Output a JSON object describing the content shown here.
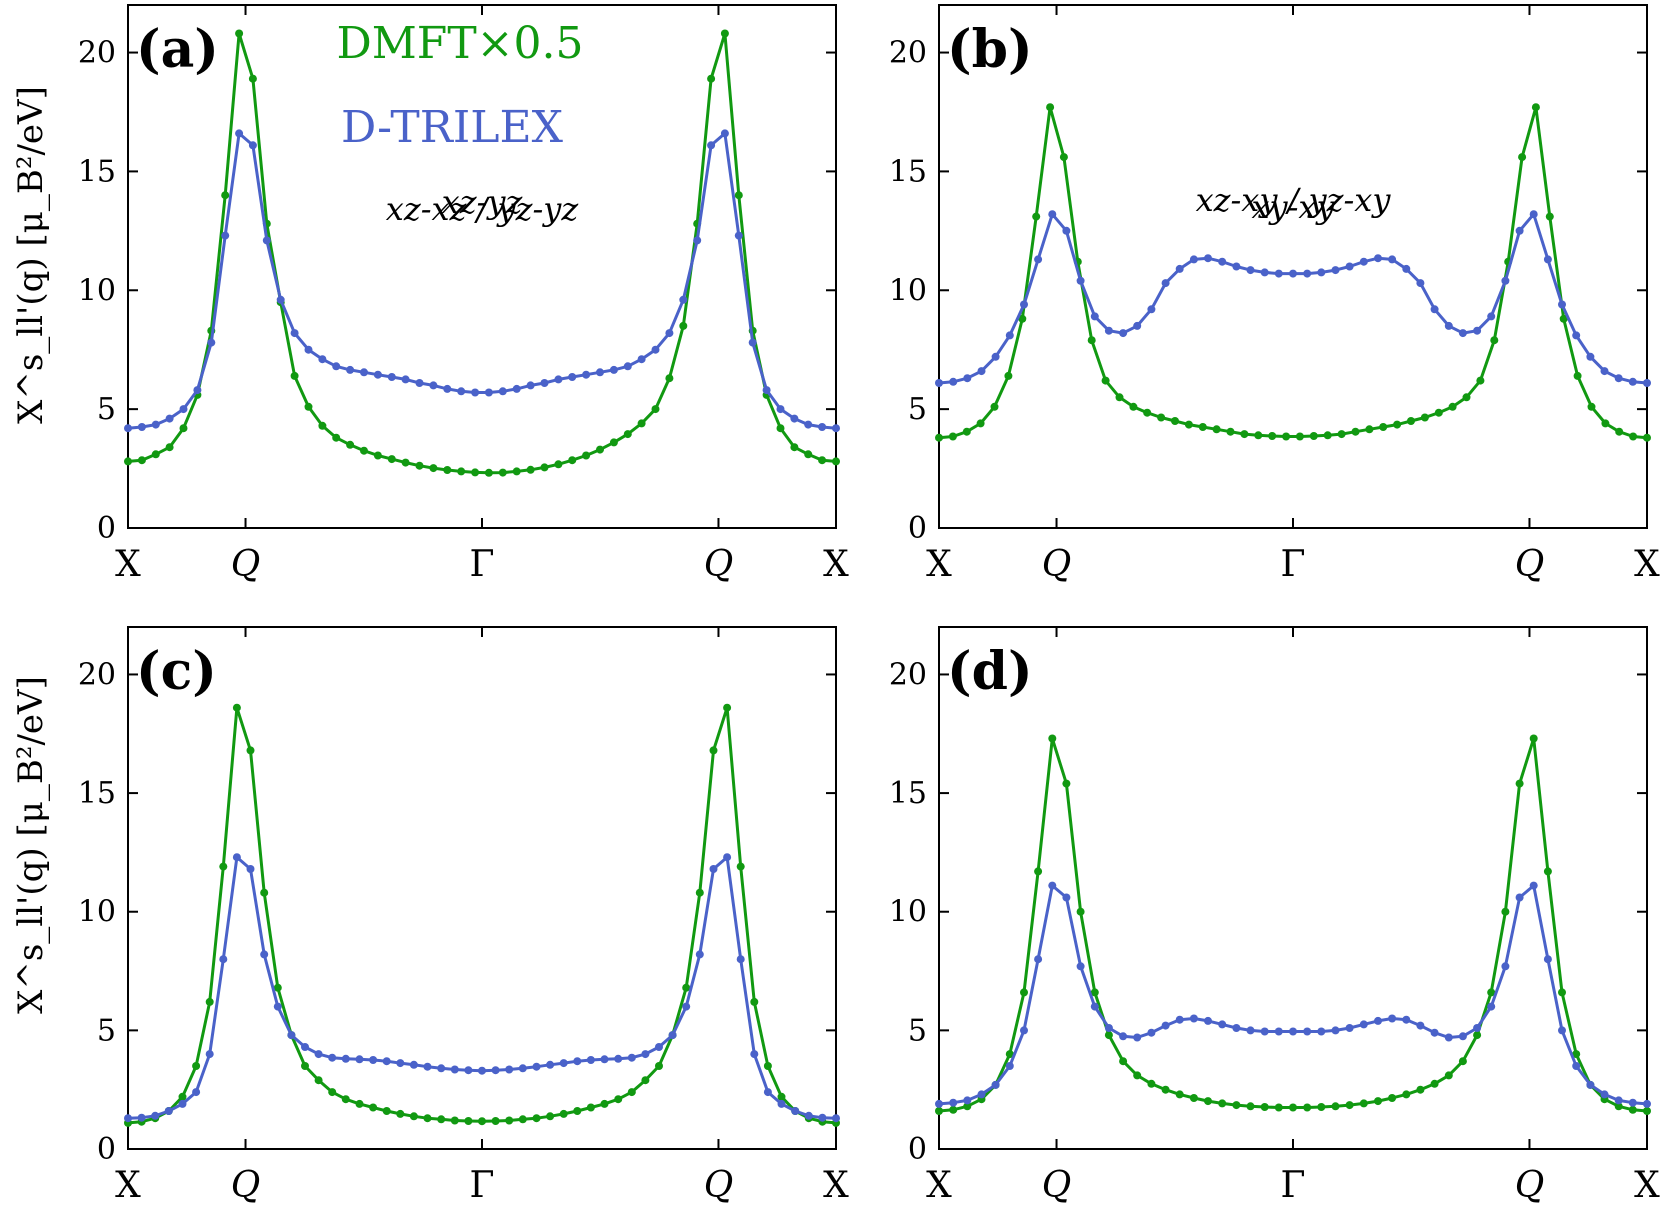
{
  "figure": {
    "ylabel": "X^s_ll'(q) [μ_B²/eV]",
    "legend": [
      {
        "label": "DMFT×0.5",
        "color": "#119911"
      },
      {
        "label": "D-TRILEX",
        "color": "#4a62c9"
      }
    ]
  },
  "chart_data": [
    {
      "type": "line",
      "panel_label": "(a)",
      "orbital_label": "xz-xz / yz-yz",
      "x_ticks": [
        "X",
        "Q",
        "Γ",
        "Q",
        "X"
      ],
      "y_ticks": [
        "0",
        "5",
        "10",
        "15",
        "20"
      ],
      "ylim": [
        0,
        22
      ],
      "series": [
        {
          "name": "DMFT×0.5",
          "color": "#119911",
          "key": "dmft",
          "values": [
            2.8,
            2.85,
            3.1,
            3.4,
            4.2,
            5.6,
            8.3,
            14.0,
            20.8,
            18.9,
            12.8,
            9.5,
            6.4,
            5.1,
            4.3,
            3.8,
            3.5,
            3.25,
            3.05,
            2.9,
            2.75,
            2.62,
            2.52,
            2.44,
            2.38,
            2.34,
            2.32,
            2.33,
            2.38,
            2.45,
            2.55,
            2.68,
            2.85,
            3.05,
            3.3,
            3.6,
            3.95,
            4.4,
            5.0,
            6.3,
            8.5,
            12.8,
            18.9,
            20.8,
            14.0,
            8.3,
            5.6,
            4.2,
            3.4,
            3.1,
            2.85,
            2.8
          ]
        },
        {
          "name": "D-TRILEX",
          "color": "#4a62c9",
          "key": "dtrilex",
          "values": [
            4.2,
            4.25,
            4.35,
            4.6,
            5.0,
            5.8,
            7.8,
            12.3,
            16.6,
            16.1,
            12.1,
            9.6,
            8.2,
            7.5,
            7.1,
            6.8,
            6.65,
            6.55,
            6.45,
            6.35,
            6.25,
            6.1,
            6.0,
            5.85,
            5.75,
            5.7,
            5.7,
            5.75,
            5.85,
            6.0,
            6.1,
            6.25,
            6.35,
            6.45,
            6.55,
            6.65,
            6.8,
            7.1,
            7.5,
            8.2,
            9.6,
            12.1,
            16.1,
            16.6,
            12.3,
            7.8,
            5.8,
            5.0,
            4.6,
            4.35,
            4.25,
            4.2
          ]
        }
      ]
    },
    {
      "type": "line",
      "panel_label": "(b)",
      "orbital_label": "xy-xy",
      "x_ticks": [
        "X",
        "Q",
        "Γ",
        "Q",
        "X"
      ],
      "y_ticks": [
        "0",
        "5",
        "10",
        "15",
        "20"
      ],
      "ylim": [
        0,
        22
      ],
      "series": [
        {
          "name": "DMFT×0.5",
          "color": "#119911",
          "key": "dmft",
          "values": [
            3.8,
            3.85,
            4.05,
            4.4,
            5.1,
            6.4,
            8.8,
            13.1,
            17.7,
            15.6,
            11.2,
            7.9,
            6.2,
            5.5,
            5.1,
            4.85,
            4.65,
            4.5,
            4.35,
            4.25,
            4.15,
            4.05,
            3.95,
            3.9,
            3.87,
            3.85,
            3.85,
            3.87,
            3.9,
            3.95,
            4.05,
            4.15,
            4.25,
            4.35,
            4.5,
            4.65,
            4.85,
            5.1,
            5.5,
            6.2,
            7.9,
            11.2,
            15.6,
            17.7,
            13.1,
            8.8,
            6.4,
            5.1,
            4.4,
            4.05,
            3.85,
            3.8
          ]
        },
        {
          "name": "D-TRILEX",
          "color": "#4a62c9",
          "key": "dtrilex",
          "values": [
            6.1,
            6.15,
            6.3,
            6.6,
            7.2,
            8.1,
            9.4,
            11.3,
            13.2,
            12.5,
            10.4,
            8.9,
            8.3,
            8.2,
            8.5,
            9.2,
            10.3,
            10.9,
            11.3,
            11.35,
            11.2,
            11.0,
            10.85,
            10.75,
            10.7,
            10.7,
            10.7,
            10.75,
            10.85,
            11.0,
            11.2,
            11.35,
            11.3,
            10.9,
            10.3,
            9.2,
            8.5,
            8.2,
            8.3,
            8.9,
            10.4,
            12.5,
            13.2,
            11.3,
            9.4,
            8.1,
            7.2,
            6.6,
            6.3,
            6.15,
            6.1
          ]
        }
      ]
    },
    {
      "type": "line",
      "panel_label": "(c)",
      "orbital_label": "xz-yz",
      "x_ticks": [
        "X",
        "Q",
        "Γ",
        "Q",
        "X"
      ],
      "y_ticks": [
        "0",
        "5",
        "10",
        "15",
        "20"
      ],
      "ylim": [
        0,
        22
      ],
      "series": [
        {
          "name": "DMFT×0.5",
          "color": "#119911",
          "key": "dmft",
          "values": [
            1.1,
            1.15,
            1.3,
            1.6,
            2.2,
            3.5,
            6.2,
            11.9,
            18.6,
            16.8,
            10.8,
            6.8,
            4.8,
            3.5,
            2.9,
            2.4,
            2.1,
            1.9,
            1.75,
            1.6,
            1.48,
            1.38,
            1.3,
            1.25,
            1.2,
            1.18,
            1.17,
            1.18,
            1.2,
            1.25,
            1.3,
            1.38,
            1.48,
            1.6,
            1.75,
            1.9,
            2.1,
            2.4,
            2.9,
            3.5,
            4.8,
            6.8,
            10.8,
            16.8,
            18.6,
            11.9,
            6.2,
            3.5,
            2.2,
            1.6,
            1.3,
            1.15,
            1.1
          ]
        },
        {
          "name": "D-TRILEX",
          "color": "#4a62c9",
          "key": "dtrilex",
          "values": [
            1.3,
            1.32,
            1.4,
            1.6,
            1.9,
            2.4,
            4.0,
            8.0,
            12.3,
            11.8,
            8.2,
            6.0,
            4.8,
            4.3,
            4.0,
            3.85,
            3.8,
            3.78,
            3.75,
            3.7,
            3.62,
            3.55,
            3.47,
            3.4,
            3.35,
            3.32,
            3.3,
            3.32,
            3.35,
            3.4,
            3.47,
            3.55,
            3.62,
            3.7,
            3.75,
            3.78,
            3.8,
            3.85,
            4.0,
            4.3,
            4.8,
            6.0,
            8.2,
            11.8,
            12.3,
            8.0,
            4.0,
            2.4,
            1.9,
            1.6,
            1.4,
            1.32,
            1.3
          ]
        }
      ]
    },
    {
      "type": "line",
      "panel_label": "(d)",
      "orbital_label": "xz-xy / yz-xy",
      "x_ticks": [
        "X",
        "Q",
        "Γ",
        "Q",
        "X"
      ],
      "y_ticks": [
        "0",
        "5",
        "10",
        "15",
        "20"
      ],
      "ylim": [
        0,
        22
      ],
      "series": [
        {
          "name": "DMFT×0.5",
          "color": "#119911",
          "key": "dmft",
          "values": [
            1.6,
            1.65,
            1.8,
            2.1,
            2.7,
            4.0,
            6.6,
            11.7,
            17.3,
            15.4,
            10.0,
            6.6,
            4.8,
            3.7,
            3.1,
            2.75,
            2.5,
            2.3,
            2.15,
            2.02,
            1.92,
            1.85,
            1.8,
            1.77,
            1.75,
            1.75,
            1.75,
            1.77,
            1.8,
            1.85,
            1.92,
            2.02,
            2.15,
            2.3,
            2.5,
            2.75,
            3.1,
            3.7,
            4.8,
            6.6,
            10.0,
            15.4,
            17.3,
            11.7,
            6.6,
            4.0,
            2.7,
            2.1,
            1.8,
            1.65,
            1.6
          ]
        },
        {
          "name": "D-TRILEX",
          "color": "#4a62c9",
          "key": "dtrilex",
          "values": [
            1.9,
            1.95,
            2.05,
            2.3,
            2.7,
            3.5,
            5.0,
            8.0,
            11.1,
            10.6,
            7.7,
            6.0,
            5.1,
            4.75,
            4.7,
            4.9,
            5.2,
            5.45,
            5.5,
            5.4,
            5.25,
            5.1,
            5.0,
            4.95,
            4.95,
            4.95,
            4.95,
            4.95,
            5.0,
            5.1,
            5.25,
            5.4,
            5.5,
            5.45,
            5.2,
            4.9,
            4.7,
            4.75,
            5.1,
            6.0,
            7.7,
            10.6,
            11.1,
            8.0,
            5.0,
            3.5,
            2.7,
            2.3,
            2.05,
            1.95,
            1.9
          ]
        }
      ]
    }
  ]
}
